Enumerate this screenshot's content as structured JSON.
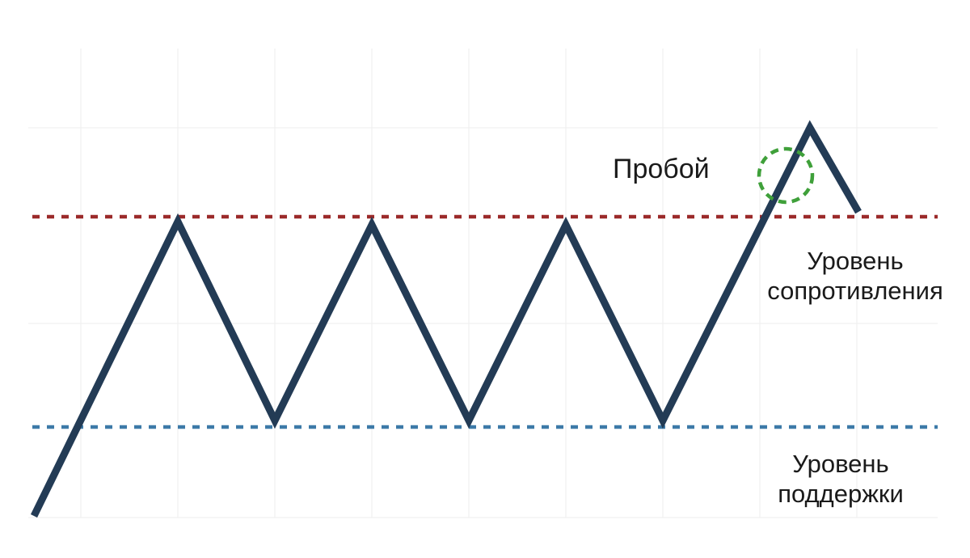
{
  "labels": {
    "breakout": "Пробой",
    "resistance_line1": "Уровень",
    "resistance_line2": "сопротивления",
    "support_line1": "Уровень",
    "support_line2": "поддержки"
  },
  "colors": {
    "price_line": "#233b55",
    "resistance": "#9b2a2a",
    "support": "#3d7aa8",
    "breakout_marker": "#3fa03a",
    "grid": "#eeeeee",
    "text": "#1a1a1a"
  }
}
